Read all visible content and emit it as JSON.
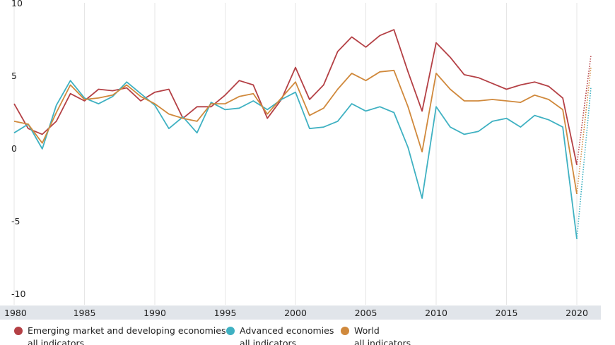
{
  "chart_data": {
    "type": "line",
    "x": [
      1980,
      1981,
      1982,
      1983,
      1984,
      1985,
      1986,
      1987,
      1988,
      1989,
      1990,
      1991,
      1992,
      1993,
      1994,
      1995,
      1996,
      1997,
      1998,
      1999,
      2000,
      2001,
      2002,
      2003,
      2004,
      2005,
      2006,
      2007,
      2008,
      2009,
      2010,
      2011,
      2012,
      2013,
      2014,
      2015,
      2016,
      2017,
      2018,
      2019,
      2020
    ],
    "x_ticks": [
      "1980",
      "1985",
      "1990",
      "1995",
      "2000",
      "2005",
      "2010",
      "2015",
      "2020"
    ],
    "y_ticks": [
      "10",
      "5",
      "0",
      "-5",
      "-10"
    ],
    "ylim": [
      -10,
      10
    ],
    "grid": "vertical lines at 5-year ticks",
    "projection_style": "dotted extension to 2021",
    "series": [
      {
        "name": "Emerging market and developing economies",
        "subtitle": "all indicators",
        "color": "#b44045",
        "values": [
          3.1,
          1.4,
          1.0,
          1.9,
          3.8,
          3.3,
          4.1,
          4.0,
          4.2,
          3.3,
          3.9,
          4.1,
          2.1,
          2.9,
          2.9,
          3.7,
          4.7,
          4.4,
          2.1,
          3.4,
          5.6,
          3.4,
          4.4,
          6.7,
          7.7,
          7.0,
          7.8,
          8.2,
          5.3,
          2.6,
          7.3,
          6.3,
          5.1,
          4.9,
          4.5,
          4.1,
          4.4,
          4.6,
          4.3,
          3.5,
          -1.1
        ],
        "projection": {
          "x": 2021,
          "value": 6.4
        }
      },
      {
        "name": "Advanced economies",
        "subtitle": "all indicators",
        "color": "#3fb1c2",
        "values": [
          1.1,
          1.7,
          0.0,
          3.0,
          4.7,
          3.5,
          3.1,
          3.6,
          4.6,
          3.8,
          3.0,
          1.4,
          2.2,
          1.1,
          3.2,
          2.7,
          2.8,
          3.3,
          2.7,
          3.4,
          3.9,
          1.4,
          1.5,
          1.9,
          3.1,
          2.6,
          2.9,
          2.5,
          0.1,
          -3.4,
          2.9,
          1.5,
          1.0,
          1.2,
          1.9,
          2.1,
          1.5,
          2.3,
          2.0,
          1.5,
          -6.2
        ],
        "projection": {
          "x": 2021,
          "value": 4.2
        }
      },
      {
        "name": "World",
        "subtitle": "all indicators",
        "color": "#d0893c",
        "values": [
          1.9,
          1.7,
          0.4,
          2.5,
          4.4,
          3.4,
          3.5,
          3.7,
          4.4,
          3.6,
          3.1,
          2.4,
          2.1,
          1.9,
          3.1,
          3.1,
          3.6,
          3.8,
          2.4,
          3.5,
          4.6,
          2.3,
          2.8,
          4.1,
          5.2,
          4.7,
          5.3,
          5.4,
          2.9,
          -0.2,
          5.2,
          4.1,
          3.3,
          3.3,
          3.4,
          3.3,
          3.2,
          3.7,
          3.4,
          2.7,
          -3.1
        ],
        "projection": {
          "x": 2021,
          "value": 5.6
        }
      }
    ]
  },
  "legend": {
    "items": [
      {
        "label": "Emerging market and developing economies",
        "sublabel": "all indicators"
      },
      {
        "label": "Advanced economies",
        "sublabel": "all indicators"
      },
      {
        "label": "World",
        "sublabel": "all indicators"
      }
    ]
  }
}
